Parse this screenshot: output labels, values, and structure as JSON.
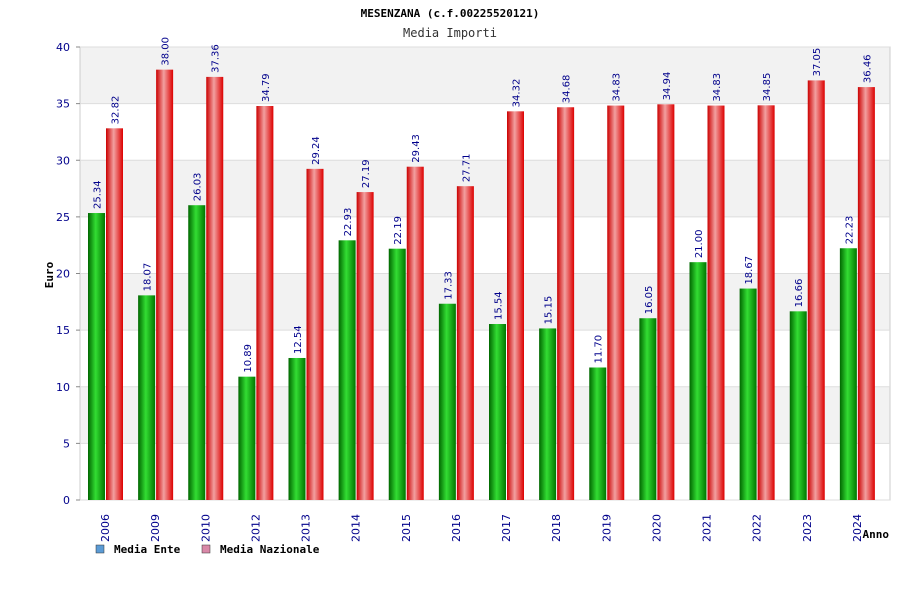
{
  "chart_data": {
    "type": "bar",
    "title": "MESENZANA (c.f.00225520121)",
    "subtitle": "Media Importi",
    "xlabel": "Anno",
    "ylabel": "Euro",
    "ylim": [
      0,
      40
    ],
    "yticks": [
      0,
      5,
      10,
      15,
      20,
      25,
      30,
      35,
      40
    ],
    "grid": true,
    "legend_position": "bottom-left",
    "categories": [
      "2006",
      "2009",
      "2010",
      "2012",
      "2013",
      "2014",
      "2015",
      "2016",
      "2017",
      "2018",
      "2019",
      "2020",
      "2021",
      "2022",
      "2023",
      "2024"
    ],
    "series": [
      {
        "name": "Media Ente",
        "color": "#00b000",
        "legend_color": "#5b9bd5",
        "values": [
          25.34,
          18.07,
          26.03,
          10.89,
          12.54,
          22.93,
          22.19,
          17.33,
          15.54,
          15.15,
          11.7,
          16.05,
          21.0,
          18.67,
          16.66,
          22.23
        ],
        "labels": [
          "25.34",
          "18.07",
          "26.03",
          "10.89",
          "12.54",
          "22.93",
          "22.19",
          "17.33",
          "15.54",
          "15.15",
          "11.70",
          "16.05",
          "21.00",
          "18.67",
          "16.66",
          "22.23"
        ]
      },
      {
        "name": "Media Nazionale",
        "color": "#e00000",
        "legend_color": "#d988a8",
        "values": [
          32.82,
          38.0,
          37.36,
          34.79,
          29.24,
          27.19,
          29.43,
          27.71,
          34.32,
          34.68,
          34.83,
          34.94,
          34.83,
          34.85,
          37.05,
          36.46
        ],
        "labels": [
          "32.82",
          "38.00",
          "37.36",
          "34.79",
          "29.24",
          "27.19",
          "29.43",
          "27.71",
          "34.32",
          "34.68",
          "34.83",
          "34.94",
          "34.83",
          "34.85",
          "37.05",
          "36.46"
        ]
      }
    ]
  }
}
